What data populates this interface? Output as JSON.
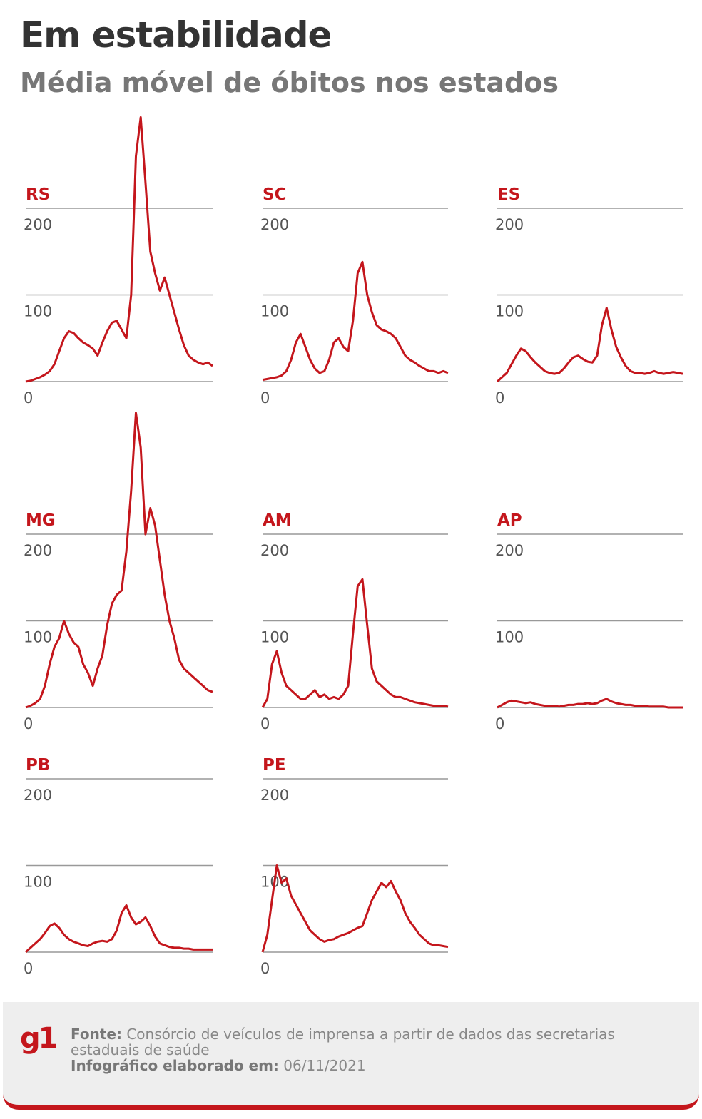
{
  "header": {
    "title": "Em estabilidade",
    "subtitle": "Média móvel de óbitos nos estados"
  },
  "chart_data": [
    {
      "type": "line",
      "title": "RS",
      "color": "#c4161c",
      "ylim": [
        0,
        200
      ],
      "yticks": [
        0,
        100,
        200
      ],
      "grid": true,
      "values": [
        0,
        1,
        3,
        5,
        8,
        12,
        20,
        35,
        50,
        58,
        56,
        50,
        45,
        42,
        38,
        30,
        45,
        58,
        68,
        70,
        60,
        50,
        100,
        260,
        305,
        230,
        150,
        125,
        105,
        120,
        100,
        80,
        60,
        42,
        30,
        25,
        22,
        20,
        22,
        18
      ]
    },
    {
      "type": "line",
      "title": "SC",
      "color": "#c4161c",
      "ylim": [
        0,
        200
      ],
      "yticks": [
        0,
        100,
        200
      ],
      "grid": true,
      "values": [
        2,
        3,
        4,
        5,
        7,
        12,
        25,
        45,
        55,
        40,
        25,
        15,
        10,
        12,
        25,
        45,
        50,
        40,
        35,
        70,
        125,
        138,
        100,
        80,
        65,
        60,
        58,
        55,
        50,
        40,
        30,
        25,
        22,
        18,
        15,
        12,
        12,
        10,
        12,
        10
      ]
    },
    {
      "type": "line",
      "title": "ES",
      "color": "#c4161c",
      "ylim": [
        0,
        200
      ],
      "yticks": [
        0,
        100,
        200
      ],
      "grid": true,
      "values": [
        0,
        5,
        10,
        20,
        30,
        38,
        35,
        28,
        22,
        17,
        12,
        10,
        9,
        10,
        15,
        22,
        28,
        30,
        26,
        23,
        22,
        30,
        65,
        85,
        60,
        40,
        28,
        18,
        12,
        10,
        10,
        9,
        10,
        12,
        10,
        9,
        10,
        11,
        10,
        9
      ]
    },
    {
      "type": "line",
      "title": "MG",
      "color": "#c4161c",
      "ylim": [
        0,
        200
      ],
      "yticks": [
        0,
        100,
        200
      ],
      "grid": true,
      "values": [
        0,
        2,
        5,
        10,
        25,
        50,
        70,
        80,
        100,
        85,
        75,
        70,
        50,
        40,
        25,
        45,
        60,
        95,
        120,
        130,
        135,
        180,
        250,
        340,
        300,
        200,
        230,
        210,
        170,
        130,
        100,
        80,
        55,
        45,
        40,
        35,
        30,
        25,
        20,
        18
      ]
    },
    {
      "type": "line",
      "title": "AM",
      "color": "#c4161c",
      "ylim": [
        0,
        200
      ],
      "yticks": [
        0,
        100,
        200
      ],
      "grid": true,
      "values": [
        0,
        10,
        50,
        65,
        40,
        25,
        20,
        15,
        10,
        10,
        15,
        20,
        12,
        15,
        10,
        12,
        10,
        15,
        25,
        85,
        140,
        148,
        95,
        45,
        30,
        25,
        20,
        15,
        12,
        12,
        10,
        8,
        6,
        5,
        4,
        3,
        2,
        2,
        2,
        1
      ]
    },
    {
      "type": "line",
      "title": "AP",
      "color": "#c4161c",
      "ylim": [
        0,
        200
      ],
      "yticks": [
        0,
        100,
        200
      ],
      "grid": true,
      "values": [
        0,
        3,
        6,
        8,
        7,
        6,
        5,
        6,
        4,
        3,
        2,
        2,
        2,
        1,
        2,
        3,
        3,
        4,
        4,
        5,
        4,
        5,
        8,
        10,
        7,
        5,
        4,
        3,
        3,
        2,
        2,
        2,
        1,
        1,
        1,
        1,
        0,
        0,
        0,
        0
      ]
    },
    {
      "type": "line",
      "title": "PB",
      "color": "#c4161c",
      "ylim": [
        0,
        200
      ],
      "yticks": [
        0,
        100,
        200
      ],
      "grid": true,
      "values": [
        0,
        5,
        10,
        15,
        22,
        30,
        33,
        28,
        20,
        15,
        12,
        10,
        8,
        7,
        10,
        12,
        13,
        12,
        15,
        25,
        45,
        54,
        40,
        32,
        35,
        40,
        30,
        18,
        10,
        8,
        6,
        5,
        5,
        4,
        4,
        3,
        3,
        3,
        3,
        3
      ]
    },
    {
      "type": "line",
      "title": "PE",
      "color": "#c4161c",
      "ylim": [
        0,
        200
      ],
      "yticks": [
        0,
        100,
        200
      ],
      "grid": true,
      "values": [
        0,
        20,
        60,
        100,
        80,
        85,
        65,
        55,
        45,
        35,
        25,
        20,
        15,
        12,
        14,
        15,
        18,
        20,
        22,
        25,
        28,
        30,
        45,
        60,
        70,
        80,
        75,
        82,
        70,
        60,
        45,
        35,
        28,
        20,
        15,
        10,
        8,
        8,
        7,
        6
      ]
    }
  ],
  "footer": {
    "logo": "g1",
    "source_label": "Fonte:",
    "source": "Consórcio de veículos de imprensa a partir de dados das secretarias estaduais de saúde",
    "date_label": "Infográfico elaborado em:",
    "date": "06/11/2021"
  }
}
